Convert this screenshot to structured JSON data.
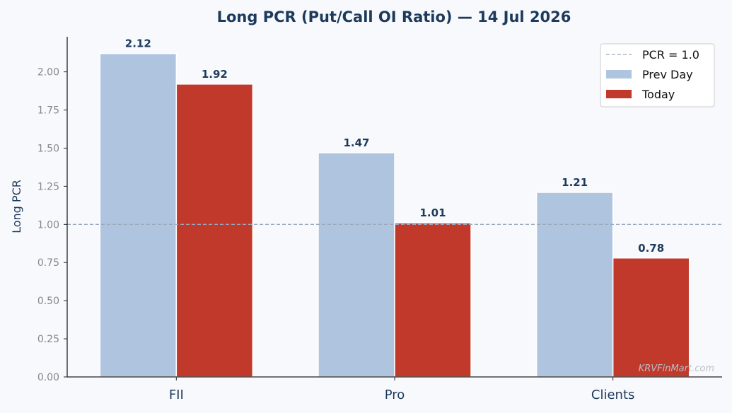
{
  "chart_data": {
    "type": "bar",
    "title": "Long PCR (Put/Call OI Ratio) — 14 Jul 2026",
    "ylabel": "Long PCR",
    "xlabel": "",
    "categories": [
      "FII",
      "Pro",
      "Clients"
    ],
    "series": [
      {
        "name": "Prev Day",
        "color": "#afc4de",
        "values": [
          2.12,
          1.47,
          1.21
        ],
        "labels": [
          "2.12",
          "1.47",
          "1.21"
        ]
      },
      {
        "name": "Today",
        "color": "#c0392b",
        "values": [
          1.92,
          1.01,
          0.78
        ],
        "labels": [
          "1.92",
          "1.01",
          "0.78"
        ]
      }
    ],
    "reference_line": {
      "label": "PCR = 1.0",
      "value": 1.0,
      "color": "#9aa8bb"
    },
    "ylim": [
      0,
      2.23
    ],
    "yticks": [
      0,
      0.25,
      0.5,
      0.75,
      1.0,
      1.25,
      1.5,
      1.75,
      2.0
    ],
    "ytick_labels": [
      "0.00",
      "0.25",
      "0.50",
      "0.75",
      "1.00",
      "1.25",
      "1.50",
      "1.75",
      "2.00"
    ],
    "legend_position": "top-right",
    "grid": false
  },
  "watermark": "KRVFinMart.com"
}
